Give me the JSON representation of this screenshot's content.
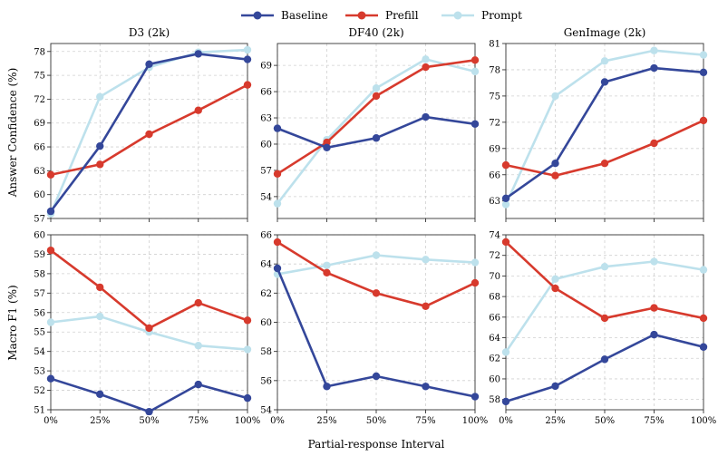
{
  "figure": {
    "legend": {
      "placement": "top-center"
    },
    "xlabel": "Partial-response Interval",
    "row_labels": [
      "Answer Confidence (%)",
      "Macro F1 (%)"
    ]
  },
  "series_styles": [
    {
      "name": "Baseline",
      "color": "#34479a"
    },
    {
      "name": "Prefill",
      "color": "#d73a2d"
    },
    {
      "name": "Prompt",
      "color": "#bde1ec"
    }
  ],
  "chart_data": [
    {
      "type": "line",
      "title": "D3 (2k)",
      "ylabel": "Answer Confidence (%)",
      "xlabel": "",
      "categories": [
        "0%",
        "25%",
        "50%",
        "75%",
        "100%"
      ],
      "ylim": [
        57,
        79
      ],
      "yticks": [
        57,
        60,
        63,
        66,
        69,
        72,
        75,
        78
      ],
      "grid": true,
      "series": [
        {
          "name": "Baseline",
          "values": [
            57.9,
            66.1,
            76.4,
            77.7,
            77.0
          ]
        },
        {
          "name": "Prefill",
          "values": [
            62.5,
            63.8,
            67.6,
            70.6,
            73.8
          ]
        },
        {
          "name": "Prompt",
          "values": [
            57.6,
            72.3,
            76.0,
            77.9,
            78.2
          ]
        }
      ]
    },
    {
      "type": "line",
      "title": "DF40 (2k)",
      "ylabel": "",
      "xlabel": "",
      "categories": [
        "0%",
        "25%",
        "50%",
        "75%",
        "100%"
      ],
      "ylim": [
        51.5,
        71.5
      ],
      "yticks": [
        54,
        57,
        60,
        63,
        66,
        69
      ],
      "grid": true,
      "series": [
        {
          "name": "Baseline",
          "values": [
            61.8,
            59.6,
            60.7,
            63.1,
            62.3
          ]
        },
        {
          "name": "Prefill",
          "values": [
            56.6,
            60.2,
            65.5,
            68.8,
            69.6
          ]
        },
        {
          "name": "Prompt",
          "values": [
            53.2,
            60.5,
            66.4,
            69.7,
            68.3
          ]
        }
      ]
    },
    {
      "type": "line",
      "title": "GenImage (2k)",
      "ylabel": "",
      "xlabel": "",
      "categories": [
        "0%",
        "25%",
        "50%",
        "75%",
        "100%"
      ],
      "ylim": [
        61,
        81
      ],
      "yticks": [
        63,
        66,
        69,
        72,
        75,
        78,
        81
      ],
      "grid": true,
      "series": [
        {
          "name": "Baseline",
          "values": [
            63.3,
            67.3,
            76.6,
            78.2,
            77.7
          ]
        },
        {
          "name": "Prefill",
          "values": [
            67.1,
            65.9,
            67.3,
            69.6,
            72.2
          ]
        },
        {
          "name": "Prompt",
          "values": [
            62.6,
            75.0,
            79.0,
            80.2,
            79.7
          ]
        }
      ]
    },
    {
      "type": "line",
      "title": "",
      "ylabel": "Macro F1 (%)",
      "xlabel": "",
      "categories": [
        "0%",
        "25%",
        "50%",
        "75%",
        "100%"
      ],
      "ylim": [
        51,
        60
      ],
      "yticks": [
        51,
        52,
        53,
        54,
        55,
        56,
        57,
        58,
        59,
        60
      ],
      "grid": true,
      "series": [
        {
          "name": "Baseline",
          "values": [
            52.6,
            51.8,
            50.9,
            52.3,
            51.6
          ]
        },
        {
          "name": "Prefill",
          "values": [
            59.2,
            57.3,
            55.2,
            56.5,
            55.6
          ]
        },
        {
          "name": "Prompt",
          "values": [
            55.5,
            55.8,
            55.0,
            54.3,
            54.1
          ]
        }
      ]
    },
    {
      "type": "line",
      "title": "",
      "ylabel": "",
      "xlabel": "Partial-response Interval",
      "categories": [
        "0%",
        "25%",
        "50%",
        "75%",
        "100%"
      ],
      "ylim": [
        54,
        66
      ],
      "yticks": [
        54,
        56,
        58,
        60,
        62,
        64,
        66
      ],
      "grid": true,
      "series": [
        {
          "name": "Baseline",
          "values": [
            63.7,
            55.6,
            56.3,
            55.6,
            54.9
          ]
        },
        {
          "name": "Prefill",
          "values": [
            65.5,
            63.4,
            62.0,
            61.1,
            62.7
          ]
        },
        {
          "name": "Prompt",
          "values": [
            63.3,
            63.9,
            64.6,
            64.3,
            64.1
          ]
        }
      ]
    },
    {
      "type": "line",
      "title": "",
      "ylabel": "",
      "xlabel": "",
      "categories": [
        "0%",
        "25%",
        "50%",
        "75%",
        "100%"
      ],
      "ylim": [
        57,
        74
      ],
      "yticks": [
        58,
        60,
        62,
        64,
        66,
        68,
        70,
        72,
        74
      ],
      "grid": true,
      "series": [
        {
          "name": "Baseline",
          "values": [
            57.8,
            59.3,
            61.9,
            64.3,
            63.1
          ]
        },
        {
          "name": "Prefill",
          "values": [
            73.3,
            68.8,
            65.9,
            66.9,
            65.9
          ]
        },
        {
          "name": "Prompt",
          "values": [
            62.6,
            69.7,
            70.9,
            71.4,
            70.6
          ]
        }
      ]
    }
  ]
}
